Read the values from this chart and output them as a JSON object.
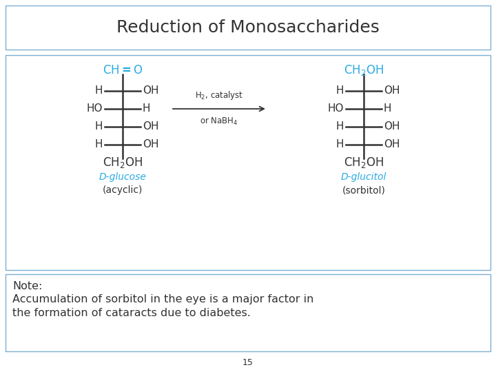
{
  "title": "Reduction of Monosaccharides",
  "title_fontsize": 18,
  "background_color": "#ffffff",
  "note_text_line1": "Note:",
  "note_text_line2": "Accumulation of sorbitol in the eye is a major factor in",
  "note_text_line3": "the formation of cataracts due to diabetes.",
  "page_number": "15",
  "cyan_color": "#29ABE2",
  "dark_color": "#333333",
  "border_color": "#7bafd4",
  "note_fontsize": 11.5,
  "chem_fontsize": 11,
  "label_fontsize": 10,
  "reagent_fontsize": 8.5
}
